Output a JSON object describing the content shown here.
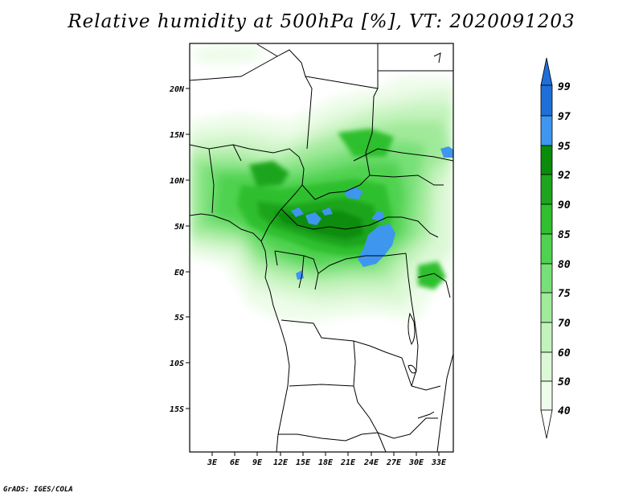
{
  "title": "Relative humidity at 500hPa [%], VT: 2020091203",
  "credit": "GrADS: IGES/COLA",
  "map": {
    "lat_labels": [
      "20N",
      "15N",
      "10N",
      "5N",
      "EQ",
      "5S",
      "10S",
      "15S"
    ],
    "lon_labels": [
      "3E",
      "6E",
      "9E",
      "12E",
      "15E",
      "18E",
      "21E",
      "24E",
      "27E",
      "30E",
      "33E"
    ]
  },
  "colorbar": {
    "levels": [
      "99",
      "97",
      "95",
      "92",
      "90",
      "85",
      "80",
      "75",
      "70",
      "60",
      "50",
      "40"
    ],
    "colors": {
      "97-99": "#1e6fd9",
      "95-97": "#3f96ee",
      "92-95": "#0a8c0a",
      "90-92": "#1ea51e",
      "85-90": "#2fbf2f",
      "80-85": "#4fd24f",
      "75-80": "#78e078",
      "70-75": "#a0ea9a",
      "60-70": "#c3f3bc",
      "50-60": "#dcf8d6",
      "40-50": "#eefcea"
    }
  }
}
